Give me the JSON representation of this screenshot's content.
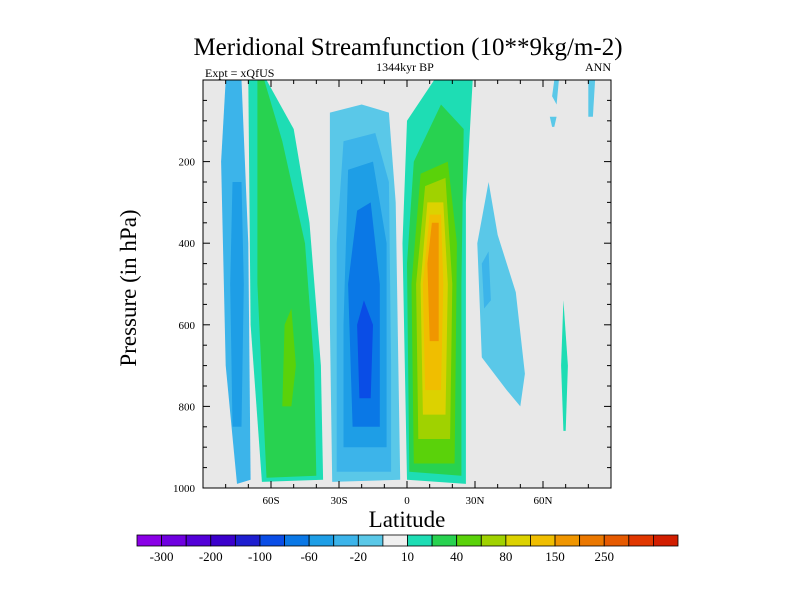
{
  "chart_data": {
    "type": "contour",
    "title": "Meridional Streamfunction (10**9kg/m-2)",
    "subtitle": "1344kyr BP",
    "left_label": "Expt = xQfUS",
    "right_label": "ANN",
    "xlabel": "Latitude",
    "ylabel": "Pressure (in hPa)",
    "xlim": [
      -90,
      90
    ],
    "ylim": [
      1000,
      0
    ],
    "x_ticks": [
      {
        "value": -60,
        "label": "60S"
      },
      {
        "value": -30,
        "label": "30S"
      },
      {
        "value": 0,
        "label": "0"
      },
      {
        "value": 30,
        "label": "30N"
      },
      {
        "value": 60,
        "label": "60N"
      }
    ],
    "y_ticks": [
      {
        "value": 200,
        "label": "200"
      },
      {
        "value": 400,
        "label": "400"
      },
      {
        "value": 600,
        "label": "600"
      },
      {
        "value": 800,
        "label": "800"
      },
      {
        "value": 1000,
        "label": "1000"
      }
    ],
    "background_color": "#e8e8e8",
    "colorbar": {
      "colors": [
        "#8a00e6",
        "#6f00e0",
        "#5300d8",
        "#3b00cc",
        "#1e1ed0",
        "#0a4de6",
        "#0a78e6",
        "#1e9ee6",
        "#3cb4ea",
        "#5ac8e8",
        "#f0f0f0",
        "#1eddb4",
        "#28d250",
        "#5ad20a",
        "#a0d200",
        "#dcd200",
        "#f0be00",
        "#f09600",
        "#eb7800",
        "#e65a00",
        "#e13700",
        "#d21e00"
      ],
      "labels": [
        "-300",
        "-200",
        "-100",
        "-60",
        "-20",
        "10",
        "40",
        "80",
        "150",
        "250"
      ],
      "label_after_index": [
        0,
        2,
        4,
        6,
        8,
        10,
        12,
        14,
        16,
        18
      ]
    },
    "fields": [
      {
        "name": "SH polar cell",
        "sign": "negative",
        "outline": [
          [
            -75,
            990
          ],
          [
            -80,
            700
          ],
          [
            -82,
            200
          ],
          [
            -80,
            0
          ],
          [
            -73,
            0
          ],
          [
            -70,
            400
          ],
          [
            -69,
            980
          ]
        ],
        "layers": [
          {
            "color": "#3cb4ea",
            "outline": [
              [
                -75,
                990
              ],
              [
                -80,
                700
              ],
              [
                -82,
                200
              ],
              [
                -80,
                0
              ],
              [
                -73,
                0
              ],
              [
                -70,
                400
              ],
              [
                -69,
                980
              ]
            ]
          },
          {
            "color": "#1e9ee6",
            "outline": [
              [
                -77,
                850
              ],
              [
                -78,
                500
              ],
              [
                -77,
                250
              ],
              [
                -73,
                250
              ],
              [
                -72,
                500
              ],
              [
                -73,
                850
              ]
            ]
          }
        ]
      },
      {
        "name": "SH Ferrel cell",
        "sign": "positive",
        "layers": [
          {
            "color": "#1eddb4",
            "outline": [
              [
                -64,
                985
              ],
              [
                -69,
                600
              ],
              [
                -70,
                0
              ],
              [
                -62,
                0
              ],
              [
                -50,
                120
              ],
              [
                -43,
                350
              ],
              [
                -38,
                700
              ],
              [
                -37,
                980
              ]
            ]
          },
          {
            "color": "#28d250",
            "outline": [
              [
                -62,
                975
              ],
              [
                -66,
                500
              ],
              [
                -66,
                0
              ],
              [
                -63,
                0
              ],
              [
                -55,
                150
              ],
              [
                -45,
                400
              ],
              [
                -41,
                700
              ],
              [
                -40,
                970
              ]
            ]
          },
          {
            "color": "#5ad20a",
            "outline": [
              [
                -55,
                800
              ],
              [
                -54,
                600
              ],
              [
                -51,
                560
              ],
              [
                -49,
                700
              ],
              [
                -51,
                800
              ]
            ]
          }
        ]
      },
      {
        "name": "SH Hadley cell",
        "sign": "negative",
        "layers": [
          {
            "color": "#5ac8e8",
            "outline": [
              [
                -33,
                985
              ],
              [
                -34,
                600
              ],
              [
                -34,
                80
              ],
              [
                -20,
                60
              ],
              [
                -8,
                80
              ],
              [
                -5,
                300
              ],
              [
                -3,
                980
              ]
            ]
          },
          {
            "color": "#3cb4ea",
            "outline": [
              [
                -31,
                960
              ],
              [
                -31,
                400
              ],
              [
                -28,
                150
              ],
              [
                -14,
                130
              ],
              [
                -8,
                250
              ],
              [
                -7,
                700
              ],
              [
                -7,
                960
              ]
            ]
          },
          {
            "color": "#1e9ee6",
            "outline": [
              [
                -28,
                900
              ],
              [
                -28,
                600
              ],
              [
                -26,
                220
              ],
              [
                -15,
                200
              ],
              [
                -9,
                400
              ],
              [
                -9,
                900
              ]
            ]
          },
          {
            "color": "#0a78e6",
            "outline": [
              [
                -24,
                850
              ],
              [
                -26,
                500
              ],
              [
                -22,
                320
              ],
              [
                -16,
                300
              ],
              [
                -12,
                500
              ],
              [
                -12,
                850
              ]
            ]
          },
          {
            "color": "#0a4de6",
            "outline": [
              [
                -21,
                780
              ],
              [
                -22,
                600
              ],
              [
                -19,
                540
              ],
              [
                -15,
                600
              ],
              [
                -16,
                780
              ]
            ]
          }
        ]
      },
      {
        "name": "NH Hadley cell",
        "sign": "positive",
        "layers": [
          {
            "color": "#1eddb4",
            "outline": [
              [
                0,
                980
              ],
              [
                -2,
                400
              ],
              [
                0,
                100
              ],
              [
                12,
                0
              ],
              [
                29,
                0
              ],
              [
                26,
                300
              ],
              [
                26,
                990
              ]
            ]
          },
          {
            "color": "#28d250",
            "outline": [
              [
                1,
                960
              ],
              [
                0,
                450
              ],
              [
                3,
                200
              ],
              [
                15,
                60
              ],
              [
                25,
                120
              ],
              [
                24,
                500
              ],
              [
                24,
                970
              ]
            ]
          },
          {
            "color": "#5ad20a",
            "outline": [
              [
                3,
                940
              ],
              [
                2,
                500
              ],
              [
                6,
                230
              ],
              [
                18,
                200
              ],
              [
                22,
                400
              ],
              [
                21,
                940
              ]
            ]
          },
          {
            "color": "#a0d200",
            "outline": [
              [
                5,
                880
              ],
              [
                4,
                500
              ],
              [
                8,
                260
              ],
              [
                17,
                240
              ],
              [
                20,
                500
              ],
              [
                19,
                880
              ]
            ]
          },
          {
            "color": "#dcd200",
            "outline": [
              [
                7,
                820
              ],
              [
                6,
                500
              ],
              [
                9,
                300
              ],
              [
                16,
                300
              ],
              [
                18,
                500
              ],
              [
                17,
                820
              ]
            ]
          },
          {
            "color": "#f0be00",
            "outline": [
              [
                8,
                760
              ],
              [
                7,
                500
              ],
              [
                10,
                330
              ],
              [
                15,
                330
              ],
              [
                16,
                500
              ],
              [
                15,
                760
              ]
            ]
          },
          {
            "color": "#f09600",
            "outline": [
              [
                10,
                640
              ],
              [
                9,
                450
              ],
              [
                11,
                350
              ],
              [
                14,
                350
              ],
              [
                14,
                640
              ]
            ]
          }
        ]
      },
      {
        "name": "NH Ferrel cell",
        "sign": "negative",
        "layers": [
          {
            "color": "#5ac8e8",
            "outline": [
              [
                33,
                680
              ],
              [
                31,
                400
              ],
              [
                36,
                250
              ],
              [
                40,
                380
              ],
              [
                48,
                520
              ],
              [
                52,
                720
              ],
              [
                50,
                800
              ],
              [
                44,
                760
              ]
            ]
          },
          {
            "color": "#3cb4ea",
            "outline": [
              [
                34,
                560
              ],
              [
                33,
                450
              ],
              [
                36,
                420
              ],
              [
                37,
                540
              ]
            ]
          }
        ]
      },
      {
        "name": "NH polar fragments",
        "sign": "mixed",
        "layers": [
          {
            "color": "#5ac8e8",
            "outline": [
              [
                64,
                40
              ],
              [
                65,
                0
              ],
              [
                67,
                0
              ],
              [
                66,
                60
              ]
            ]
          },
          {
            "color": "#5ac8e8",
            "outline": [
              [
                64,
                115
              ],
              [
                63,
                90
              ],
              [
                66,
                90
              ],
              [
                65,
                115
              ]
            ]
          },
          {
            "color": "#5ac8e8",
            "outline": [
              [
                80,
                90
              ],
              [
                80,
                0
              ],
              [
                83,
                0
              ],
              [
                82,
                90
              ]
            ]
          },
          {
            "color": "#1eddb4",
            "outline": [
              [
                69,
                860
              ],
              [
                68,
                700
              ],
              [
                69,
                540
              ],
              [
                71,
                700
              ],
              [
                70,
                860
              ]
            ]
          }
        ]
      }
    ]
  }
}
